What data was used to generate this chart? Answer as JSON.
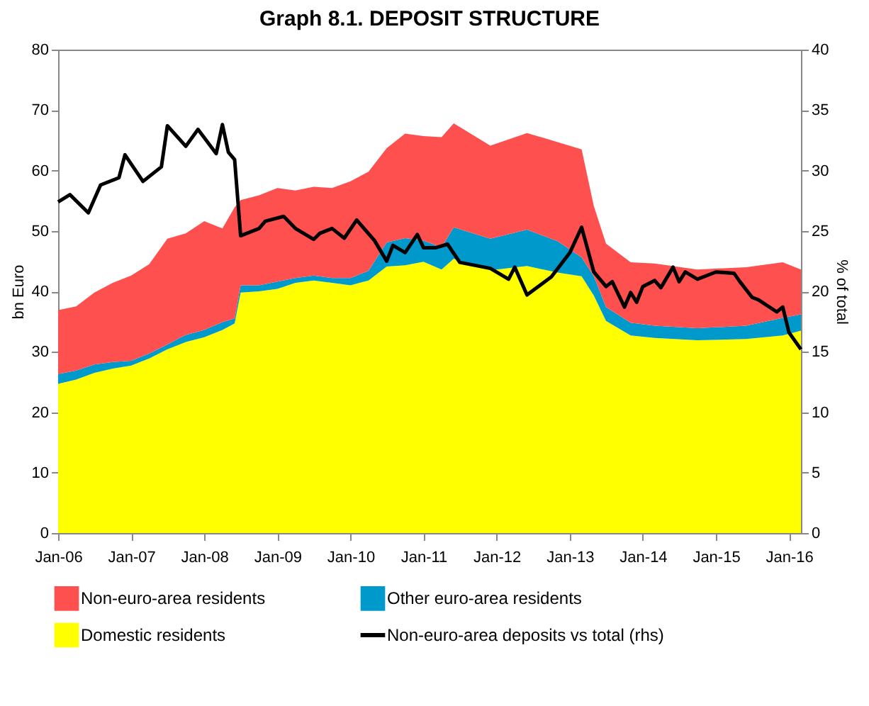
{
  "chart_data": {
    "type": "area",
    "title": "Graph 8.1. DEPOSIT STRUCTURE",
    "ylabel": "bn Euro",
    "y2label": "% of total",
    "stacked": true,
    "legend": "bottom",
    "grid": false,
    "x": [
      "2006-01",
      "2006-04",
      "2006-07",
      "2006-10",
      "2007-01",
      "2007-04",
      "2007-07",
      "2007-10",
      "2008-01",
      "2008-04",
      "2008-06",
      "2008-07",
      "2008-10",
      "2009-01",
      "2009-04",
      "2009-07",
      "2009-10",
      "2010-01",
      "2010-04",
      "2010-07",
      "2010-10",
      "2011-01",
      "2011-04",
      "2011-06",
      "2011-12",
      "2012-06",
      "2012-11",
      "2013-03",
      "2013-05",
      "2013-07",
      "2013-11",
      "2014-03",
      "2014-10",
      "2015-06",
      "2015-12",
      "2016-03"
    ],
    "series": [
      {
        "name": "Domestic residents",
        "color": "#ffff00",
        "values": [
          24.7,
          25.4,
          26.5,
          27.2,
          27.7,
          28.9,
          30.4,
          31.6,
          32.4,
          33.6,
          34.7,
          39.8,
          40.0,
          40.4,
          41.4,
          41.8,
          41.4,
          41.0,
          41.8,
          44.1,
          44.3,
          44.9,
          43.6,
          45.4,
          43.5,
          44.2,
          43.1,
          42.5,
          39.3,
          35.1,
          32.7,
          32.3,
          31.9,
          32.1,
          32.7,
          33.5
        ]
      },
      {
        "name": "Other euro-area residents",
        "color": "#0099cc",
        "values": [
          1.6,
          1.5,
          1.4,
          1.1,
          0.8,
          0.8,
          0.8,
          1.2,
          1.2,
          1.3,
          0.8,
          1.2,
          1.0,
          1.2,
          0.8,
          0.8,
          0.8,
          1.2,
          1.6,
          4.0,
          4.5,
          3.5,
          3.7,
          5.2,
          5.2,
          6.0,
          5.2,
          3.1,
          3.2,
          2.3,
          2.1,
          2.0,
          2.0,
          2.2,
          2.9,
          2.7
        ]
      },
      {
        "name": "Non-euro-area residents",
        "color": "#ff5050",
        "values": [
          10.6,
          10.6,
          11.9,
          13.1,
          14.1,
          14.8,
          17.5,
          16.8,
          18.0,
          15.5,
          18.4,
          14.1,
          14.9,
          15.5,
          14.5,
          14.7,
          14.9,
          16.0,
          16.4,
          15.6,
          17.3,
          17.3,
          18.2,
          17.2,
          15.4,
          16.0,
          16.4,
          17.9,
          11.6,
          10.5,
          10.0,
          10.3,
          9.7,
          9.7,
          9.2,
          7.4
        ]
      },
      {
        "name": "Non-euro-area deposits vs total (rhs)",
        "type": "line",
        "axis": "y2",
        "color": "#000000",
        "line_style": "solid",
        "x": [
          "2006-01",
          "2006-03",
          "2006-06",
          "2006-08",
          "2006-11",
          "2006-12",
          "2007-03",
          "2007-06",
          "2007-07",
          "2007-10",
          "2007-12",
          "2008-03",
          "2008-04",
          "2008-05",
          "2008-06",
          "2008-07",
          "2008-10",
          "2008-11",
          "2009-02",
          "2009-04",
          "2009-07",
          "2009-08",
          "2009-10",
          "2009-12",
          "2010-02",
          "2010-05",
          "2010-07",
          "2010-08",
          "2010-10",
          "2010-12",
          "2011-01",
          "2011-03",
          "2011-05",
          "2011-07",
          "2011-12",
          "2012-03",
          "2012-04",
          "2012-06",
          "2012-10",
          "2013-01",
          "2013-03",
          "2013-05",
          "2013-07",
          "2013-08",
          "2013-10",
          "2013-11",
          "2013-12",
          "2014-01",
          "2014-03",
          "2014-04",
          "2014-06",
          "2014-07",
          "2014-08",
          "2014-10",
          "2015-01",
          "2015-04",
          "2015-05",
          "2015-07",
          "2015-08",
          "2015-11",
          "2015-12",
          "2016-01",
          "2016-03"
        ],
        "values": [
          27.4,
          28.0,
          26.5,
          28.8,
          29.4,
          31.3,
          29.1,
          30.3,
          33.7,
          32.0,
          33.4,
          31.4,
          33.8,
          31.5,
          30.9,
          24.6,
          25.2,
          25.8,
          26.2,
          25.2,
          24.3,
          24.8,
          25.2,
          24.4,
          25.9,
          24.2,
          22.5,
          23.8,
          23.2,
          24.7,
          23.6,
          23.6,
          23.9,
          22.4,
          21.9,
          21.0,
          22.0,
          19.7,
          21.2,
          23.2,
          25.3,
          21.6,
          20.4,
          20.8,
          18.7,
          19.9,
          19.1,
          20.4,
          20.9,
          20.3,
          22.0,
          20.8,
          21.6,
          21.0,
          21.6,
          21.5,
          20.8,
          19.5,
          19.3,
          18.3,
          18.7,
          16.6,
          15.2
        ]
      }
    ],
    "xlim": [
      "2006-01",
      "2016-03"
    ],
    "xticks": [
      {
        "value": "2006-01",
        "label": "Jan-06"
      },
      {
        "value": "2007-01",
        "label": "Jan-07"
      },
      {
        "value": "2008-01",
        "label": "Jan-08"
      },
      {
        "value": "2009-01",
        "label": "Jan-09"
      },
      {
        "value": "2010-01",
        "label": "Jan-10"
      },
      {
        "value": "2011-01",
        "label": "Jan-11"
      },
      {
        "value": "2012-01",
        "label": "Jan-12"
      },
      {
        "value": "2013-01",
        "label": "Jan-13"
      },
      {
        "value": "2014-01",
        "label": "Jan-14"
      },
      {
        "value": "2015-01",
        "label": "Jan-15"
      },
      {
        "value": "2016-01",
        "label": "Jan-16"
      }
    ],
    "ylim": [
      0,
      80
    ],
    "yticks": [
      0,
      10,
      20,
      30,
      40,
      50,
      60,
      70,
      80
    ],
    "y2lim": [
      0,
      40
    ],
    "y2ticks": [
      0,
      5,
      10,
      15,
      20,
      25,
      30,
      35,
      40
    ]
  }
}
